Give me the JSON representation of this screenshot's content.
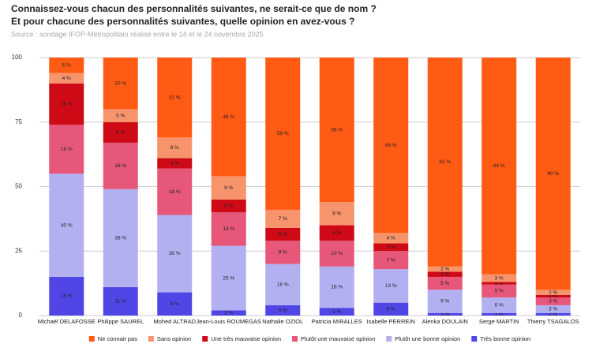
{
  "chart_data": {
    "type": "stacked-bar",
    "title": [
      "Connaissez-vous chacun des personnalités suivantes, ne serait-ce que de nom ?",
      "Et pour chacune des personnalités suivantes, quelle opinion en avez-vous ?"
    ],
    "source": "Source : sondage IFOP-Métropolitain réalisé entre le 14 et le 24 novembre 2025",
    "categories": [
      "Michaël DELAFOSSE",
      "Philippe SAUREL",
      "Mohed ALTRAD",
      "Jean-Louis ROUMEGAS",
      "Nathalie OZIOL",
      "Patricia MIRALLES",
      "Isabelle PERREIN",
      "Alenka DOULAIN",
      "Serge MARTIN",
      "Thierry TSAGALOS"
    ],
    "series": [
      {
        "name": "Très bonne opinion",
        "color": "#4f46e5",
        "values": [
          15,
          11,
          9,
          2,
          4,
          3,
          5,
          1,
          1,
          1
        ],
        "value_labels": [
          "15 %",
          "11 %",
          "9 %",
          "2 %",
          "4 %",
          "3 %",
          "5 %",
          "1 %",
          "1 %",
          "1 %"
        ]
      },
      {
        "name": "Plutôt une bonne opinion",
        "color": "#b3b0f2",
        "values": [
          40,
          38,
          30,
          25,
          16,
          16,
          13,
          9,
          6,
          3
        ],
        "value_labels": [
          "40 %",
          "38 %",
          "30 %",
          "25 %",
          "16 %",
          "16 %",
          "13 %",
          "9 %",
          "6 %",
          "3 %"
        ]
      },
      {
        "name": "Plutôt une mauvaise opinion",
        "color": "#e6577a",
        "values": [
          19,
          18,
          18,
          13,
          9,
          10,
          7,
          5,
          5,
          3
        ],
        "value_labels": [
          "19 %",
          "18 %",
          "18 %",
          "13 %",
          "9 %",
          "10 %",
          "7 %",
          "5 %",
          "5 %",
          "3 %"
        ]
      },
      {
        "name": "Une très mauvaise opinion",
        "color": "#cf0a17",
        "values": [
          16,
          8,
          4,
          5,
          5,
          6,
          3,
          2,
          1,
          1
        ],
        "value_labels": [
          "16 %",
          "8 %",
          "4 %",
          "5 %",
          "5 %",
          "6 %",
          "3 %",
          "2 %",
          "1 %",
          "1 %"
        ]
      },
      {
        "name": "Sans opinion",
        "color": "#f7946c",
        "values": [
          4,
          5,
          8,
          9,
          7,
          9,
          4,
          2,
          3,
          2
        ],
        "value_labels": [
          "4 %",
          "5 %",
          "8 %",
          "9 %",
          "7 %",
          "9 %",
          "4 %",
          "2 %",
          "3 %",
          "2 %"
        ]
      },
      {
        "name": "Ne connait pas",
        "color": "#ff5b14",
        "values": [
          6,
          20,
          31,
          46,
          59,
          56,
          68,
          81,
          84,
          90
        ],
        "value_labels": [
          "6 %",
          "20 %",
          "31 %",
          "46 %",
          "59 %",
          "56 %",
          "68 %",
          "81 %",
          "84 %",
          "90 %"
        ]
      }
    ],
    "ylim": [
      0,
      100
    ],
    "yticks": [
      0,
      25,
      50,
      75,
      100
    ],
    "grid": true
  }
}
